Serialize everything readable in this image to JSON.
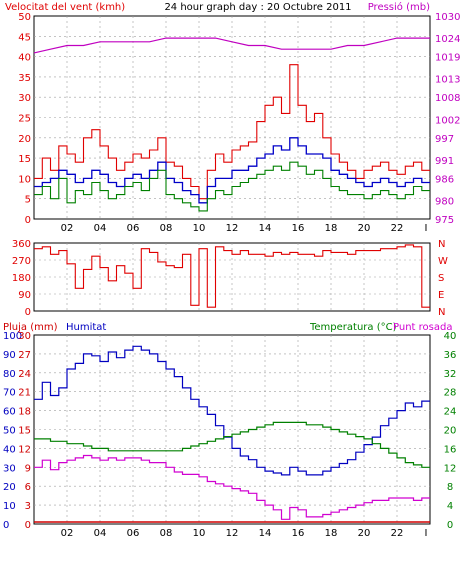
{
  "colors": {
    "wind": "#e00000",
    "wind_avg": "#0000c8",
    "gust": "#008000",
    "pressure": "#c000c0",
    "direction": "#e00000",
    "rain": "#d00000",
    "humidity": "#0000c0",
    "temperature": "#008000",
    "dewpoint": "#d000d0",
    "grid": "#a0a0a0",
    "frame": "#000000",
    "panel_bg": "#ffffff"
  },
  "chart_data": [
    {
      "type": "line",
      "title": "24 hour graph day : 20 Octubre 2011",
      "left_label": "Velocitat del vent (kmh)",
      "right_label": "Pressió (mb)",
      "hour_ticks": [
        "02",
        "04",
        "06",
        "08",
        "10",
        "12",
        "14",
        "16",
        "18",
        "20",
        "22",
        "I"
      ],
      "ylim_left": [
        0,
        50
      ],
      "y_ticks_left": [
        0,
        5,
        10,
        15,
        20,
        25,
        30,
        35,
        40,
        45,
        50
      ],
      "ylim_right": [
        975,
        1030
      ],
      "y_ticks_right": [
        975,
        980,
        986,
        991,
        997,
        1002,
        1008,
        1013,
        1019,
        1024,
        1030
      ],
      "grid": true,
      "series": [
        {
          "key": "wind_gust",
          "x": [
            0,
            0.5,
            1,
            1.5,
            2,
            2.5,
            3,
            3.5,
            4,
            4.5,
            5,
            5.5,
            6,
            6.5,
            7,
            7.5,
            8,
            8.5,
            9,
            9.5,
            10,
            10.5,
            11,
            11.5,
            12,
            12.5,
            13,
            13.5,
            14,
            14.5,
            15,
            15.5,
            16,
            16.5,
            17,
            17.5,
            18,
            18.5,
            19,
            19.5,
            20,
            20.5,
            21,
            21.5,
            22,
            22.5,
            23,
            23.5
          ],
          "values": [
            10,
            15,
            12,
            18,
            16,
            14,
            20,
            22,
            18,
            15,
            12,
            14,
            16,
            15,
            17,
            20,
            14,
            13,
            10,
            8,
            5,
            12,
            16,
            14,
            17,
            18,
            19,
            24,
            28,
            30,
            26,
            38,
            28,
            24,
            26,
            20,
            16,
            14,
            12,
            10,
            12,
            13,
            14,
            12,
            11,
            13,
            14,
            12
          ]
        },
        {
          "key": "wind_avg",
          "x": [
            0,
            0.5,
            1,
            1.5,
            2,
            2.5,
            3,
            3.5,
            4,
            4.5,
            5,
            5.5,
            6,
            6.5,
            7,
            7.5,
            8,
            8.5,
            9,
            9.5,
            10,
            10.5,
            11,
            11.5,
            12,
            12.5,
            13,
            13.5,
            14,
            14.5,
            15,
            15.5,
            16,
            16.5,
            17,
            17.5,
            18,
            18.5,
            19,
            19.5,
            20,
            20.5,
            21,
            21.5,
            22,
            22.5,
            23,
            23.5
          ],
          "values": [
            8,
            9,
            10,
            12,
            11,
            9,
            10,
            12,
            11,
            9,
            8,
            10,
            11,
            10,
            12,
            14,
            10,
            9,
            7,
            6,
            4,
            8,
            10,
            10,
            12,
            12,
            13,
            15,
            16,
            18,
            17,
            20,
            18,
            16,
            16,
            15,
            12,
            11,
            10,
            9,
            8,
            9,
            10,
            9,
            8,
            9,
            10,
            9
          ]
        },
        {
          "key": "wind_speed",
          "x": [
            0,
            0.5,
            1,
            1.5,
            2,
            2.5,
            3,
            3.5,
            4,
            4.5,
            5,
            5.5,
            6,
            6.5,
            7,
            7.5,
            8,
            8.5,
            9,
            9.5,
            10,
            10.5,
            11,
            11.5,
            12,
            12.5,
            13,
            13.5,
            14,
            14.5,
            15,
            15.5,
            16,
            16.5,
            17,
            17.5,
            18,
            18.5,
            19,
            19.5,
            20,
            20.5,
            21,
            21.5,
            22,
            22.5,
            23,
            23.5
          ],
          "values": [
            6,
            8,
            5,
            10,
            4,
            7,
            6,
            9,
            7,
            5,
            6,
            8,
            9,
            7,
            10,
            12,
            6,
            5,
            4,
            3,
            2,
            5,
            7,
            6,
            8,
            9,
            10,
            11,
            12,
            13,
            12,
            14,
            13,
            11,
            12,
            10,
            8,
            7,
            6,
            6,
            5,
            6,
            7,
            6,
            5,
            6,
            8,
            7
          ]
        },
        {
          "key": "pressure",
          "x": [
            0,
            1,
            2,
            3,
            4,
            5,
            6,
            7,
            8,
            9,
            10,
            11,
            12,
            13,
            14,
            15,
            16,
            17,
            18,
            19,
            20,
            21,
            22,
            23,
            24
          ],
          "values": [
            1020,
            1021,
            1022,
            1022,
            1023,
            1023,
            1023,
            1023,
            1024,
            1024,
            1024,
            1024,
            1023,
            1022,
            1022,
            1021,
            1021,
            1021,
            1021,
            1022,
            1022,
            1023,
            1024,
            1024,
            1024
          ]
        }
      ]
    },
    {
      "type": "line",
      "y_ticks_left": [
        0,
        90,
        180,
        270,
        360
      ],
      "y_ticks_right": [
        "N",
        "W",
        "S",
        "E",
        "N"
      ],
      "ylim": [
        0,
        360
      ],
      "series": [
        {
          "key": "wind_dir",
          "x": [
            0,
            0.5,
            1,
            1.5,
            2,
            2.5,
            3,
            3.5,
            4,
            4.5,
            5,
            5.5,
            6,
            6.5,
            7,
            7.5,
            8,
            8.5,
            9,
            9.5,
            10,
            10.5,
            11,
            11.5,
            12,
            12.5,
            13,
            13.5,
            14,
            14.5,
            15,
            15.5,
            16,
            16.5,
            17,
            17.5,
            18,
            18.5,
            19,
            19.5,
            20,
            20.5,
            21,
            21.5,
            22,
            22.5,
            23,
            23.5
          ],
          "values": [
            330,
            340,
            300,
            320,
            250,
            120,
            220,
            290,
            230,
            160,
            240,
            200,
            120,
            330,
            310,
            260,
            240,
            230,
            300,
            30,
            330,
            20,
            340,
            320,
            300,
            320,
            300,
            300,
            290,
            310,
            300,
            310,
            300,
            300,
            290,
            320,
            310,
            310,
            300,
            320,
            320,
            320,
            330,
            330,
            340,
            350,
            340,
            20
          ]
        }
      ]
    },
    {
      "type": "line",
      "left_label_a": "Pluja (mm)",
      "left_label_b": "Humitat",
      "right_label_a": "Temperatura (°C)",
      "right_label_b": "Punt rosada",
      "hour_ticks": [
        "02",
        "04",
        "06",
        "08",
        "10",
        "12",
        "14",
        "16",
        "18",
        "20",
        "22",
        "I"
      ],
      "y_ticks_hum": [
        0,
        10,
        20,
        30,
        40,
        50,
        60,
        70,
        80,
        90,
        100
      ],
      "y_ticks_rain": [
        0,
        3,
        6,
        9,
        12,
        15,
        18,
        21,
        24,
        27,
        30
      ],
      "y_ticks_temp": [
        0,
        4,
        8,
        12,
        16,
        20,
        24,
        28,
        32,
        36,
        40
      ],
      "ylim_hum": [
        0,
        100
      ],
      "ylim_temp": [
        0,
        40
      ],
      "series": [
        {
          "key": "humidity",
          "x": [
            0,
            0.5,
            1,
            1.5,
            2,
            2.5,
            3,
            3.5,
            4,
            4.5,
            5,
            5.5,
            6,
            6.5,
            7,
            7.5,
            8,
            8.5,
            9,
            9.5,
            10,
            10.5,
            11,
            11.5,
            12,
            12.5,
            13,
            13.5,
            14,
            14.5,
            15,
            15.5,
            16,
            16.5,
            17,
            17.5,
            18,
            18.5,
            19,
            19.5,
            20,
            20.5,
            21,
            21.5,
            22,
            22.5,
            23,
            23.5
          ],
          "values": [
            66,
            75,
            68,
            72,
            82,
            85,
            90,
            89,
            86,
            91,
            88,
            92,
            94,
            92,
            90,
            86,
            82,
            78,
            72,
            66,
            62,
            58,
            52,
            46,
            40,
            36,
            34,
            30,
            28,
            27,
            26,
            30,
            28,
            26,
            26,
            28,
            30,
            32,
            34,
            38,
            42,
            46,
            52,
            56,
            60,
            64,
            62,
            65
          ]
        },
        {
          "key": "temperature",
          "x": [
            0,
            0.5,
            1,
            1.5,
            2,
            2.5,
            3,
            3.5,
            4,
            4.5,
            5,
            5.5,
            6,
            6.5,
            7,
            7.5,
            8,
            8.5,
            9,
            9.5,
            10,
            10.5,
            11,
            11.5,
            12,
            12.5,
            13,
            13.5,
            14,
            14.5,
            15,
            15.5,
            16,
            16.5,
            17,
            17.5,
            18,
            18.5,
            19,
            19.5,
            20,
            20.5,
            21,
            21.5,
            22,
            22.5,
            23,
            23.5
          ],
          "values": [
            18,
            18,
            17.5,
            17.5,
            17,
            17,
            16.5,
            16,
            16,
            15.5,
            15.5,
            15.5,
            15.5,
            15.5,
            15.5,
            15.5,
            15.5,
            15.5,
            16,
            16.5,
            17,
            17.5,
            18,
            18.5,
            19,
            19.5,
            20,
            20.5,
            21,
            21.5,
            21.5,
            21.5,
            21.5,
            21,
            21,
            20.5,
            20,
            19.5,
            19,
            18.5,
            18,
            17,
            16,
            15,
            14,
            13,
            12.5,
            12
          ]
        },
        {
          "key": "dewpoint",
          "x": [
            0,
            0.5,
            1,
            1.5,
            2,
            2.5,
            3,
            3.5,
            4,
            4.5,
            5,
            5.5,
            6,
            6.5,
            7,
            7.5,
            8,
            8.5,
            9,
            9.5,
            10,
            10.5,
            11,
            11.5,
            12,
            12.5,
            13,
            13.5,
            14,
            14.5,
            15,
            15.5,
            16,
            16.5,
            17,
            17.5,
            18,
            18.5,
            19,
            19.5,
            20,
            20.5,
            21,
            21.5,
            22,
            22.5,
            23,
            23.5
          ],
          "values": [
            12,
            13.5,
            11.5,
            13,
            13.5,
            14,
            14.5,
            14,
            13.5,
            14,
            13.5,
            14,
            14,
            13.5,
            13,
            13,
            12,
            11,
            10.5,
            10.5,
            10,
            9,
            8.5,
            8,
            7.5,
            7,
            6.5,
            5,
            4,
            3,
            1,
            3.5,
            3,
            1.5,
            1.5,
            2,
            2.5,
            3,
            3.5,
            4,
            4.5,
            5,
            5,
            5.5,
            5.5,
            5.5,
            5,
            5.5
          ]
        },
        {
          "key": "rain",
          "x": [
            0,
            24
          ],
          "values": [
            0,
            0
          ]
        }
      ]
    }
  ]
}
